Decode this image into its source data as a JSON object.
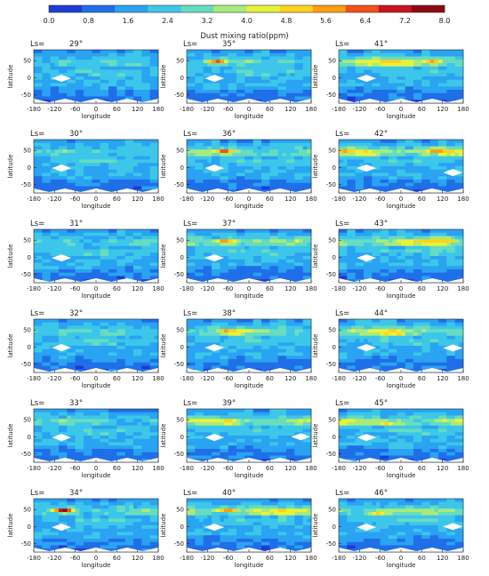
{
  "colorbar": {
    "title": "Dust mixing ratio(ppm)",
    "ticks": [
      "0.0",
      "0.8",
      "1.6",
      "2.4",
      "3.2",
      "4.0",
      "4.8",
      "5.6",
      "6.4",
      "7.2",
      "8.0"
    ],
    "colors": [
      "#1c3bd6",
      "#1f6fe8",
      "#2aa3f2",
      "#3cc7ea",
      "#66dcc0",
      "#a8eb7a",
      "#e6f33a",
      "#ffd21c",
      "#ff9d10",
      "#f0511a",
      "#c8141e",
      "#8e0a12"
    ]
  },
  "chart_data": {
    "type": "heatmap",
    "xlabel": "longitude",
    "ylabel": "latitude",
    "xticks": [
      "-180",
      "-120",
      "-60",
      "0",
      "60",
      "120",
      "180"
    ],
    "yticks": [
      "50",
      "0",
      "-50"
    ],
    "xlim": [
      -180,
      180
    ],
    "ylim": [
      -90,
      90
    ],
    "colorbar_range": [
      0.0,
      8.0
    ],
    "ls_prefix": "Ls=",
    "panels": [
      {
        "ls": "29°",
        "peak": 3.4,
        "peak_lon": -90,
        "peak_lat": 45,
        "north_band": 2.6
      },
      {
        "ls": "35°",
        "peak": 6.4,
        "peak_lon": -90,
        "peak_lat": 47,
        "north_band": 3.0
      },
      {
        "ls": "41°",
        "peak": 5.4,
        "peak_lon": 90,
        "peak_lat": 48,
        "north_band": 4.8
      },
      {
        "ls": "30°",
        "peak": 3.3,
        "peak_lon": -90,
        "peak_lat": 45,
        "north_band": 2.6
      },
      {
        "ls": "36°",
        "peak": 6.0,
        "peak_lon": -70,
        "peak_lat": 47,
        "north_band": 3.4
      },
      {
        "ls": "42°",
        "peak": 5.6,
        "peak_lon": 100,
        "peak_lat": 50,
        "north_band": 4.9
      },
      {
        "ls": "31°",
        "peak": 3.2,
        "peak_lon": -90,
        "peak_lat": 45,
        "north_band": 2.6
      },
      {
        "ls": "37°",
        "peak": 6.2,
        "peak_lon": -65,
        "peak_lat": 45,
        "north_band": 3.6
      },
      {
        "ls": "43°",
        "peak": 5.5,
        "peak_lon": 120,
        "peak_lat": 50,
        "north_band": 4.7
      },
      {
        "ls": "32°",
        "peak": 3.4,
        "peak_lon": -90,
        "peak_lat": 45,
        "north_band": 2.8
      },
      {
        "ls": "38°",
        "peak": 5.9,
        "peak_lon": -60,
        "peak_lat": 45,
        "north_band": 3.8
      },
      {
        "ls": "44°",
        "peak": 5.2,
        "peak_lon": -30,
        "peak_lat": 40,
        "north_band": 4.4
      },
      {
        "ls": "33°",
        "peak": 3.3,
        "peak_lon": -90,
        "peak_lat": 45,
        "north_band": 2.8
      },
      {
        "ls": "39°",
        "peak": 5.7,
        "peak_lon": -60,
        "peak_lat": 45,
        "north_band": 4.0
      },
      {
        "ls": "45°",
        "peak": 5.0,
        "peak_lon": -30,
        "peak_lat": 40,
        "north_band": 4.0
      },
      {
        "ls": "34°",
        "peak": 8.0,
        "peak_lon": -90,
        "peak_lat": 47,
        "north_band": 3.0
      },
      {
        "ls": "40°",
        "peak": 5.8,
        "peak_lon": -60,
        "peak_lat": 48,
        "north_band": 4.3
      },
      {
        "ls": "46°",
        "peak": 5.0,
        "peak_lon": -60,
        "peak_lat": 40,
        "north_band": 3.8
      }
    ]
  }
}
